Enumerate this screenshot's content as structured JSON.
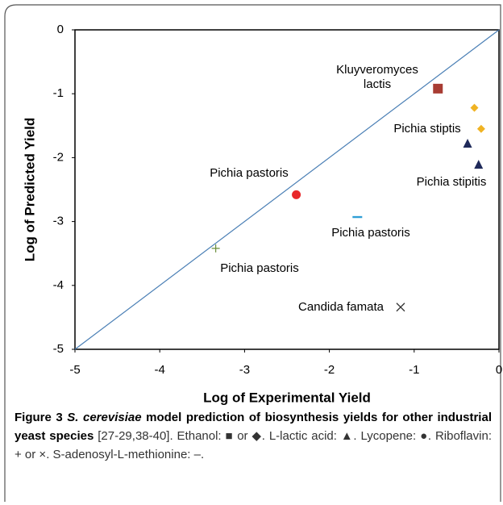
{
  "chart_data": {
    "type": "scatter",
    "xlabel": "Log of Experimental Yield",
    "ylabel": "Log of Predicted Yield",
    "xlim": [
      -5,
      0
    ],
    "ylim": [
      -5,
      0
    ],
    "xticks": [
      -5,
      -4,
      -3,
      -2,
      -1,
      0
    ],
    "yticks": [
      -5,
      -4,
      -3,
      -2,
      -1,
      0
    ],
    "diagonal_color": "#4a7fb5",
    "series": [
      {
        "marker": "square",
        "color": "#a83c33",
        "x": [
          -0.72
        ],
        "values": [
          -0.92
        ]
      },
      {
        "marker": "diamond",
        "color": "#f0b323",
        "x": [
          -0.29,
          -0.21
        ],
        "values": [
          -1.22,
          -1.55
        ]
      },
      {
        "marker": "triangle",
        "color": "#1f2a5a",
        "x": [
          -0.37,
          -0.24
        ],
        "values": [
          -1.78,
          -2.11
        ]
      },
      {
        "marker": "circle",
        "color": "#e8272a",
        "x": [
          -2.39
        ],
        "values": [
          -2.58
        ]
      },
      {
        "marker": "dash",
        "color": "#2f9fd6",
        "x": [
          -1.67
        ],
        "values": [
          -2.93
        ]
      },
      {
        "marker": "plus",
        "color": "#6b8e3a",
        "x": [
          -3.34
        ],
        "values": [
          -3.42
        ]
      },
      {
        "marker": "cross",
        "color": "#333333",
        "x": [
          -1.16
        ],
        "values": [
          -4.34
        ]
      }
    ],
    "annotations": [
      {
        "lines": [
          "Kluyveromyces",
          "lactis"
        ]
      },
      {
        "lines": [
          "Pichia stiptis"
        ]
      },
      {
        "lines": [
          "Pichia stipitis"
        ]
      },
      {
        "lines": [
          "Pichia pastoris"
        ]
      },
      {
        "lines": [
          "Pichia pastoris"
        ]
      },
      {
        "lines": [
          "Pichia pastoris"
        ]
      },
      {
        "lines": [
          "Candida famata"
        ]
      }
    ]
  },
  "caption": {
    "label": "Figure 3",
    "species": "S. cerevisiae",
    "title": " model prediction of biosynthesis yields for other industrial yeast species",
    "text": " [27-29,38-40]. Ethanol: ■ or ◆. L-lactic acid: ▲. Lycopene: ●. Riboflavin: + or ×. S-adenosyl-L-methionine: ‒."
  }
}
